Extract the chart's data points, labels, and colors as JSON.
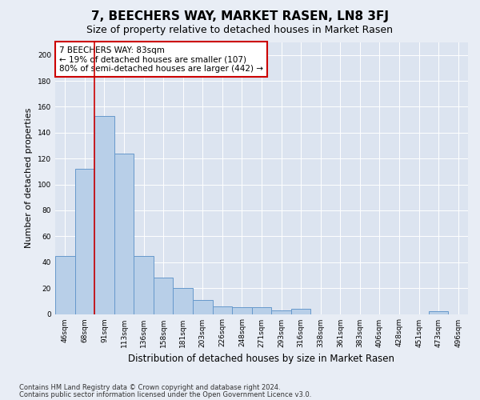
{
  "title": "7, BEECHERS WAY, MARKET RASEN, LN8 3FJ",
  "subtitle": "Size of property relative to detached houses in Market Rasen",
  "xlabel": "Distribution of detached houses by size in Market Rasen",
  "ylabel": "Number of detached properties",
  "categories": [
    "46sqm",
    "68sqm",
    "91sqm",
    "113sqm",
    "136sqm",
    "158sqm",
    "181sqm",
    "203sqm",
    "226sqm",
    "248sqm",
    "271sqm",
    "293sqm",
    "316sqm",
    "338sqm",
    "361sqm",
    "383sqm",
    "406sqm",
    "428sqm",
    "451sqm",
    "473sqm",
    "496sqm"
  ],
  "values": [
    45,
    112,
    153,
    124,
    45,
    28,
    20,
    11,
    6,
    5,
    5,
    3,
    4,
    0,
    0,
    0,
    0,
    0,
    0,
    2,
    0
  ],
  "bar_color": "#b8cfe8",
  "bar_edge_color": "#6699cc",
  "vline_color": "#cc0000",
  "vline_x_index": 1.5,
  "annotation_text": "7 BEECHERS WAY: 83sqm\n← 19% of detached houses are smaller (107)\n80% of semi-detached houses are larger (442) →",
  "annotation_box_facecolor": "#ffffff",
  "annotation_box_edgecolor": "#cc0000",
  "ylim": [
    0,
    210
  ],
  "yticks": [
    0,
    20,
    40,
    60,
    80,
    100,
    120,
    140,
    160,
    180,
    200
  ],
  "background_color": "#e8edf5",
  "plot_bg_color": "#dce4f0",
  "grid_color": "#ffffff",
  "footer_line1": "Contains HM Land Registry data © Crown copyright and database right 2024.",
  "footer_line2": "Contains public sector information licensed under the Open Government Licence v3.0.",
  "title_fontsize": 11,
  "subtitle_fontsize": 9,
  "xlabel_fontsize": 8.5,
  "ylabel_fontsize": 8,
  "tick_fontsize": 6.5,
  "annotation_fontsize": 7.5,
  "footer_fontsize": 6
}
